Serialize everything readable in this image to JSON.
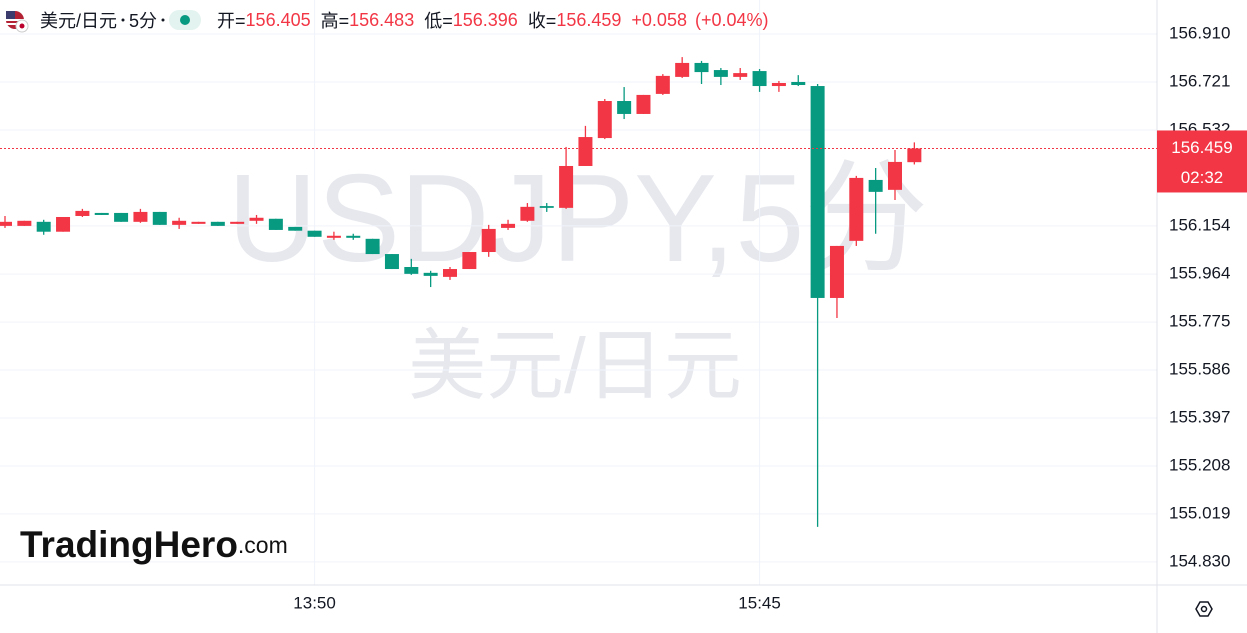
{
  "chart_data": {
    "type": "candlestick",
    "symbol": "美元/日元",
    "interval": "5分",
    "ohlc_labels": {
      "open": "开=",
      "high": "高=",
      "low": "低=",
      "close": "收="
    },
    "change": {
      "value": 0.058,
      "label": "+0.058"
    },
    "change_pct": {
      "value": 0.04,
      "label": "(+0.04%)"
    },
    "watermark": "USDJPY,5分",
    "watermark_sub": "美元/日元",
    "logo": {
      "name": "TradingHero",
      "suffix": ".com"
    },
    "countdown": "02:32",
    "up_color": "#f23645",
    "down_color": "#089981",
    "grid": true,
    "categories": [
      null,
      null,
      null,
      null,
      null,
      null,
      null,
      null,
      null,
      null,
      null,
      null,
      null,
      null,
      null,
      null,
      "13:50",
      null,
      null,
      null,
      null,
      null,
      null,
      null,
      null,
      null,
      null,
      null,
      null,
      null,
      null,
      null,
      null,
      null,
      null,
      null,
      null,
      null,
      null,
      "15:45",
      null,
      null,
      null,
      null,
      null,
      null,
      null,
      null
    ],
    "open": [
      156.154,
      156.154,
      156.17,
      156.131,
      156.193,
      156.205,
      156.205,
      156.17,
      156.209,
      156.158,
      156.162,
      156.17,
      156.162,
      156.174,
      156.182,
      156.15,
      156.135,
      156.107,
      156.115,
      156.103,
      156.043,
      155.992,
      155.969,
      155.953,
      155.984,
      156.051,
      156.146,
      156.174,
      156.232,
      156.225,
      156.39,
      156.5,
      156.646,
      156.595,
      156.674,
      156.741,
      156.796,
      156.768,
      156.741,
      156.764,
      156.705,
      156.721,
      156.705,
      155.87,
      156.095,
      156.335,
      156.296,
      156.405
    ],
    "high": [
      156.193,
      156.174,
      156.178,
      156.189,
      156.221,
      156.205,
      156.205,
      156.221,
      156.209,
      156.186,
      156.17,
      156.17,
      156.17,
      156.197,
      156.182,
      156.15,
      156.135,
      156.131,
      156.123,
      156.103,
      156.043,
      156.024,
      155.977,
      155.992,
      156.051,
      156.158,
      156.178,
      156.244,
      156.244,
      156.465,
      156.548,
      156.654,
      156.701,
      156.67,
      156.752,
      156.819,
      156.804,
      156.776,
      156.776,
      156.772,
      156.725,
      156.748,
      156.713,
      156.075,
      156.351,
      156.382,
      156.453,
      156.483
    ],
    "low": [
      156.146,
      156.154,
      156.119,
      156.131,
      156.189,
      156.197,
      156.17,
      156.166,
      156.158,
      156.142,
      156.162,
      156.154,
      156.162,
      156.162,
      156.138,
      156.135,
      156.111,
      156.099,
      156.099,
      156.043,
      155.984,
      155.961,
      155.913,
      155.941,
      155.984,
      156.032,
      156.138,
      156.17,
      156.209,
      156.221,
      156.39,
      156.496,
      156.575,
      156.595,
      156.67,
      156.737,
      156.713,
      156.709,
      156.729,
      156.682,
      156.682,
      156.705,
      154.968,
      155.791,
      156.075,
      156.123,
      156.256,
      156.396
    ],
    "close": [
      156.17,
      156.174,
      156.131,
      156.189,
      156.213,
      156.197,
      156.17,
      156.209,
      156.158,
      156.174,
      156.17,
      156.154,
      156.17,
      156.186,
      156.138,
      156.135,
      156.111,
      156.115,
      156.107,
      156.043,
      155.984,
      155.965,
      155.957,
      155.984,
      156.051,
      156.142,
      156.162,
      156.229,
      156.225,
      156.39,
      156.504,
      156.646,
      156.595,
      156.67,
      156.745,
      156.796,
      156.76,
      156.741,
      156.756,
      156.705,
      156.717,
      156.709,
      155.87,
      156.075,
      156.343,
      156.288,
      156.406,
      156.459
    ],
    "ylim": [
      154.739,
      157.044
    ],
    "yticks": [
      {
        "value": 156.91,
        "label": "156.910"
      },
      156.721,
      156.532,
      156.154,
      155.964,
      155.775,
      155.586,
      155.397,
      155.208,
      155.019,
      {
        "value": 154.83,
        "label": "154.830"
      }
    ]
  }
}
